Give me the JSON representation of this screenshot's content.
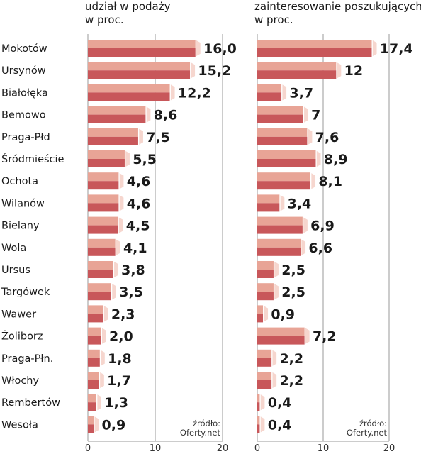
{
  "chart_data": [
    {
      "type": "bar",
      "orientation": "horizontal",
      "title": "udział w podaży\nw proc.",
      "categories": [
        "Mokotów",
        "Ursynów",
        "Białołęka",
        "Bemowo",
        "Praga-Płd",
        "Śródmieście",
        "Ochota",
        "Wilanów",
        "Bielany",
        "Wola",
        "Ursus",
        "Targówek",
        "Wawer",
        "Żoliborz",
        "Praga-Płn.",
        "Włochy",
        "Rembertów",
        "Wesoła"
      ],
      "values": [
        16.0,
        15.2,
        12.2,
        8.6,
        7.5,
        5.5,
        4.6,
        4.6,
        4.5,
        4.1,
        3.8,
        3.5,
        2.3,
        2.0,
        1.8,
        1.7,
        1.3,
        0.9
      ],
      "value_labels": [
        "16,0",
        "15,2",
        "12,2",
        "8,6",
        "7,5",
        "5,5",
        "4,6",
        "4,6",
        "4,5",
        "4,1",
        "3,8",
        "3,5",
        "2,3",
        "2,0",
        "1,8",
        "1,7",
        "1,3",
        "0,9"
      ],
      "xlim": [
        0,
        20
      ],
      "xticks": [
        "0",
        "10",
        "20"
      ],
      "source": "źródło:\nOferty.net",
      "grid": true,
      "bar_color_top": "#e8a496",
      "bar_color_bottom": "#c8575a",
      "bar_end_color": "#f6d6ce"
    },
    {
      "type": "bar",
      "orientation": "horizontal",
      "title": "zainteresowanie poszukujących\nw proc.",
      "categories": [
        "Mokotów",
        "Ursynów",
        "Białołęka",
        "Bemowo",
        "Praga-Płd",
        "Śródmieście",
        "Ochota",
        "Wilanów",
        "Bielany",
        "Wola",
        "Ursus",
        "Targówek",
        "Wawer",
        "Żoliborz",
        "Praga-Płn.",
        "Włochy",
        "Rembertów",
        "Wesoła"
      ],
      "values": [
        17.4,
        12,
        3.7,
        7,
        7.6,
        8.9,
        8.1,
        3.4,
        6.9,
        6.6,
        2.5,
        2.5,
        0.9,
        7.2,
        2.2,
        2.2,
        0.4,
        0.4
      ],
      "value_labels": [
        "17,4",
        "12",
        "3,7",
        "7",
        "7,6",
        "8,9",
        "8,1",
        "3,4",
        "6,9",
        "6,6",
        "2,5",
        "2,5",
        "0,9",
        "7,2",
        "2,2",
        "2,2",
        "0,4",
        "0,4"
      ],
      "xlim": [
        0,
        20
      ],
      "xticks": [
        "0",
        "10",
        "20"
      ],
      "source": "źródło:\nOferty.net",
      "grid": true,
      "bar_color_top": "#e8a496",
      "bar_color_bottom": "#c8575a",
      "bar_end_color": "#f6d6ce"
    }
  ]
}
